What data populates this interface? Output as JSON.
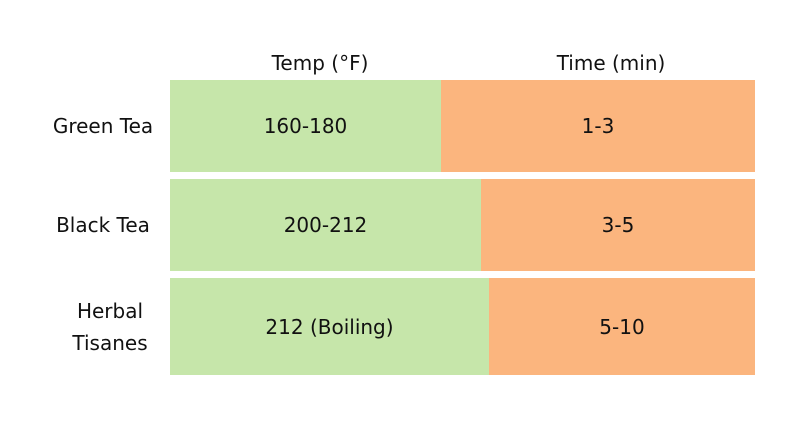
{
  "table": {
    "columns": [
      "Temp (°F)",
      "Time (min)"
    ],
    "rows": [
      [
        "Green Tea",
        "160-180",
        "1-3"
      ],
      [
        "Black Tea",
        "200-212",
        "3-5"
      ],
      [
        "Herbal Tisanes",
        "212 (Boiling)",
        "5-10"
      ]
    ]
  }
}
